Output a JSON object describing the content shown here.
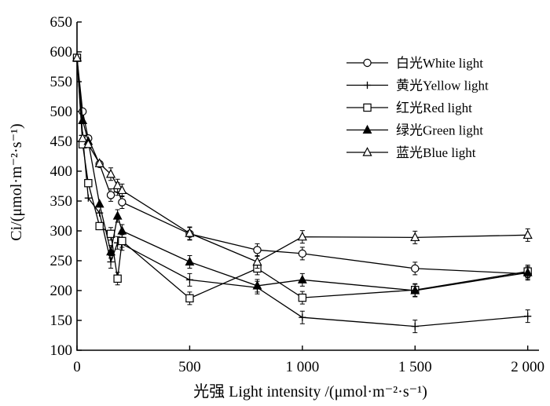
{
  "chart_data": {
    "type": "line",
    "title": "",
    "xlabel": "光强 Light intensity /(μmol·m⁻²·s⁻¹)",
    "ylabel": "Ci/(μmol·m⁻²·s⁻¹)",
    "xlim": [
      0,
      2050
    ],
    "ylim": [
      100,
      650
    ],
    "xticks": [
      0,
      500,
      1000,
      1500,
      2000
    ],
    "xtick_labels": [
      "0",
      "500",
      "1 000",
      "1 500",
      "2 000"
    ],
    "yticks": [
      100,
      150,
      200,
      250,
      300,
      350,
      400,
      450,
      500,
      550,
      600,
      650
    ],
    "ytick_labels": [
      "100",
      "150",
      "200",
      "250",
      "300",
      "350",
      "400",
      "450",
      "500",
      "550",
      "600",
      "650"
    ],
    "legend_position": "top-right",
    "x": [
      0,
      25,
      50,
      100,
      150,
      180,
      200,
      500,
      800,
      1000,
      1500,
      2000
    ],
    "series": [
      {
        "name": "白光White light",
        "marker": "circle",
        "values": [
          590,
          500,
          455,
          412,
          360,
          370,
          348,
          295,
          268,
          262,
          237,
          228
        ]
      },
      {
        "name": "黄光Yellow light",
        "marker": "plus",
        "values": [
          590,
          460,
          355,
          330,
          248,
          280,
          278,
          218,
          205,
          155,
          140,
          157
        ]
      },
      {
        "name": "红光Red light",
        "marker": "square",
        "values": [
          590,
          445,
          380,
          308,
          295,
          220,
          283,
          187,
          237,
          188,
          201,
          232
        ]
      },
      {
        "name": "绿光Green light",
        "marker": "triangle-filled",
        "values": [
          590,
          485,
          450,
          345,
          265,
          325,
          300,
          248,
          208,
          218,
          200,
          230
        ]
      },
      {
        "name": "蓝光Blue light",
        "marker": "triangle-open",
        "values": [
          590,
          455,
          445,
          413,
          395,
          376,
          368,
          296,
          248,
          290,
          289,
          293
        ]
      }
    ]
  }
}
